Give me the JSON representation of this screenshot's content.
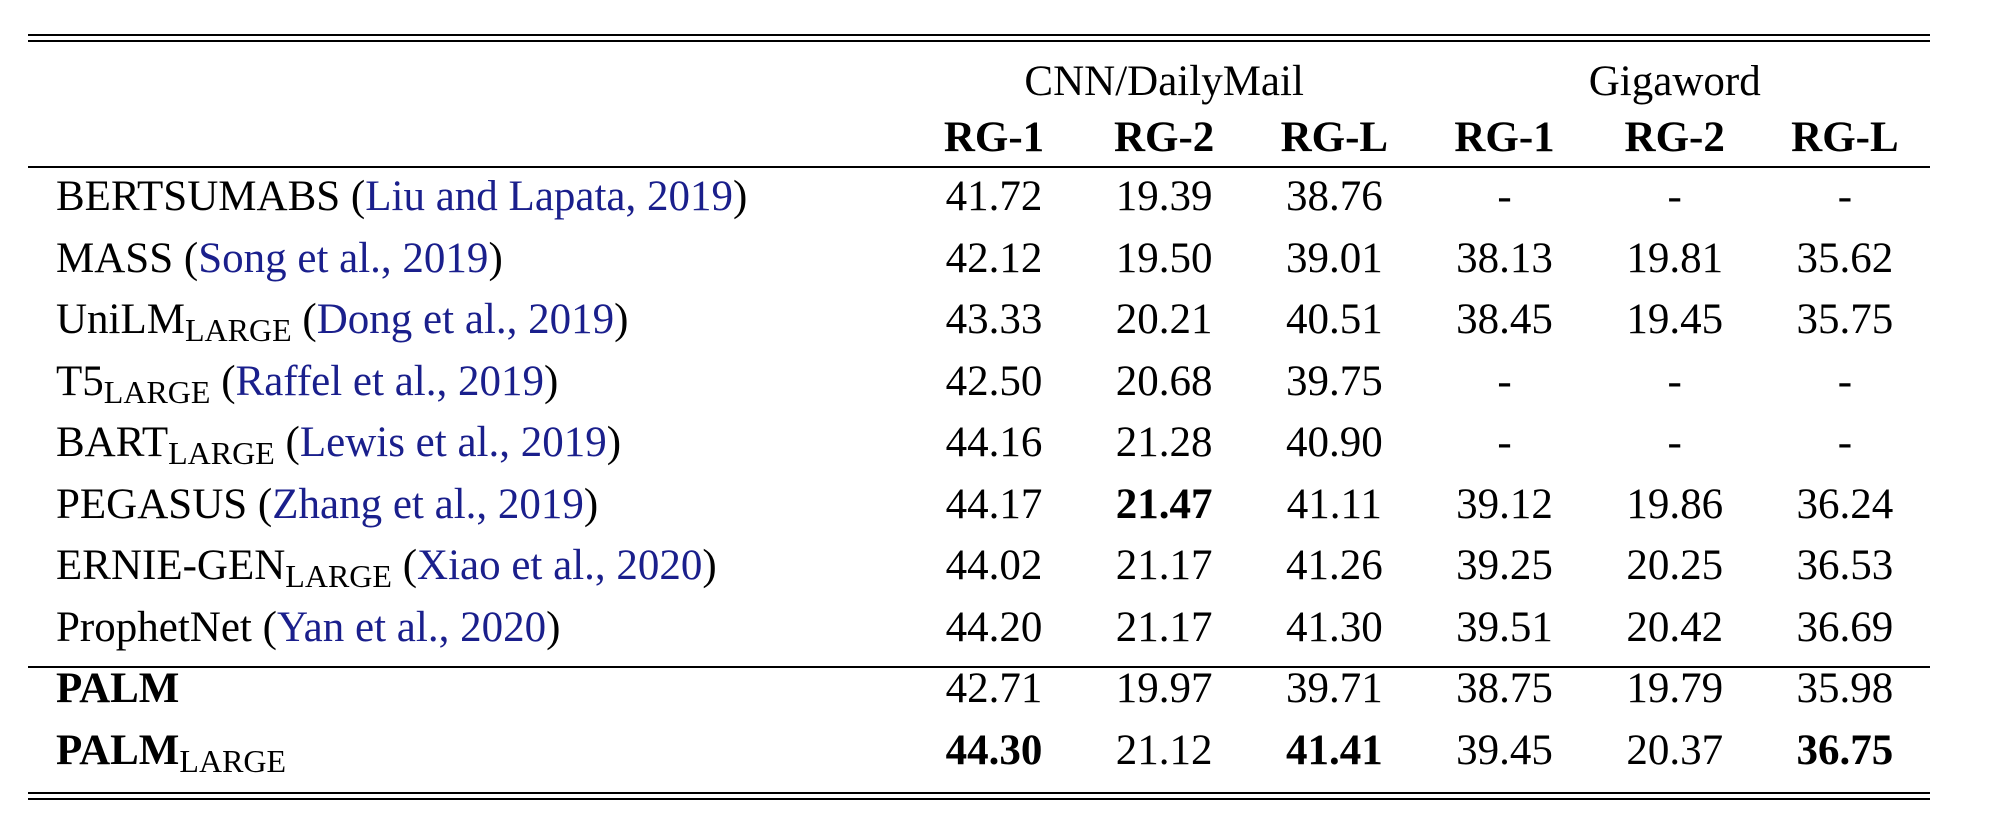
{
  "header": {
    "groups": [
      "CNN/DailyMail",
      "Gigaword"
    ],
    "metrics": [
      "RG-1",
      "RG-2",
      "RG-L",
      "RG-1",
      "RG-2",
      "RG-L"
    ]
  },
  "rows": [
    {
      "name": "BERTSUMABS",
      "sub": "",
      "cite_open": " (",
      "cite": "Liu and Lapata, 2019",
      "cite_close": ")",
      "values": [
        "41.72",
        "19.39",
        "38.76",
        "-",
        "-",
        "-"
      ],
      "bold": []
    },
    {
      "name": "MASS",
      "sub": "",
      "cite_open": " (",
      "cite": "Song et al., 2019",
      "cite_close": ")",
      "values": [
        "42.12",
        "19.50",
        "39.01",
        "38.13",
        "19.81",
        "35.62"
      ],
      "bold": []
    },
    {
      "name": "UniLM",
      "sub": "LARGE",
      "cite_open": " (",
      "cite": "Dong et al., 2019",
      "cite_close": ")",
      "values": [
        "43.33",
        "20.21",
        "40.51",
        "38.45",
        "19.45",
        "35.75"
      ],
      "bold": []
    },
    {
      "name": "T5",
      "sub": "LARGE",
      "cite_open": " (",
      "cite": "Raffel et al., 2019",
      "cite_close": ")",
      "values": [
        "42.50",
        "20.68",
        "39.75",
        "-",
        "-",
        "-"
      ],
      "bold": []
    },
    {
      "name": "BART",
      "sub": "LARGE",
      "cite_open": " (",
      "cite": "Lewis et al., 2019",
      "cite_close": ")",
      "values": [
        "44.16",
        "21.28",
        "40.90",
        "-",
        "-",
        "-"
      ],
      "bold": []
    },
    {
      "name": "PEGASUS",
      "sub": "",
      "cite_open": " (",
      "cite": "Zhang et al., 2019",
      "cite_close": ")",
      "values": [
        "44.17",
        "21.47",
        "41.11",
        "39.12",
        "19.86",
        "36.24"
      ],
      "bold": [
        1
      ]
    },
    {
      "name": "ERNIE-GEN",
      "sub": "LARGE",
      "cite_open": " (",
      "cite": "Xiao et al., 2020",
      "cite_close": ")",
      "values": [
        "44.02",
        "21.17",
        "41.26",
        "39.25",
        "20.25",
        "36.53"
      ],
      "bold": []
    },
    {
      "name": "ProphetNet",
      "sub": "",
      "cite_open": " (",
      "cite": "Yan et al., 2020",
      "cite_close": ")",
      "values": [
        "44.20",
        "21.17",
        "41.30",
        "39.51",
        "20.42",
        "36.69"
      ],
      "bold": []
    }
  ],
  "ours": [
    {
      "name": "PALM",
      "sub": "",
      "values": [
        "42.71",
        "19.97",
        "39.71",
        "38.75",
        "19.79",
        "35.98"
      ],
      "bold": []
    },
    {
      "name": "PALM",
      "sub": "LARGE",
      "values": [
        "44.30",
        "21.12",
        "41.41",
        "39.45",
        "20.37",
        "36.75"
      ],
      "bold": [
        0,
        2,
        5
      ]
    }
  ]
}
